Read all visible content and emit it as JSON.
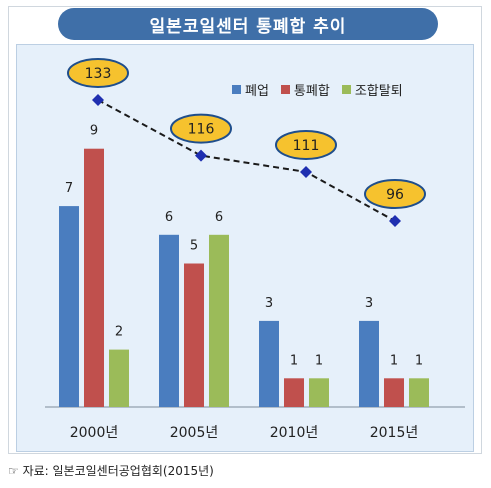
{
  "title": "일본코일센터 통폐합 추이",
  "source": "☞ 자료: 일본코일센터공업협회(2015년)",
  "colors": {
    "title_bg": "#3f6fa8",
    "series_blue": "#4a7dbf",
    "series_red": "#c0504d",
    "series_green": "#9bbb59",
    "line": "#1a1a1a",
    "marker": "#1f2fb0",
    "bubble_fill": "#f6c22e",
    "bubble_stroke": "#1f4e8c"
  },
  "chart_data": {
    "type": "bar",
    "categories": [
      "2000년",
      "2005년",
      "2010년",
      "2015년"
    ],
    "series": [
      {
        "name": "폐업",
        "values": [
          7,
          6,
          3,
          3
        ]
      },
      {
        "name": "통폐합",
        "values": [
          9,
          5,
          1,
          1
        ]
      },
      {
        "name": "조합탈퇴",
        "values": [
          2,
          6,
          1,
          1
        ]
      }
    ],
    "line_series": {
      "values": [
        133,
        116,
        111,
        96
      ],
      "style": "dashed",
      "marker": "diamond"
    },
    "ylim": [
      0,
      10
    ],
    "grid": false,
    "legend_position": "top-right"
  }
}
